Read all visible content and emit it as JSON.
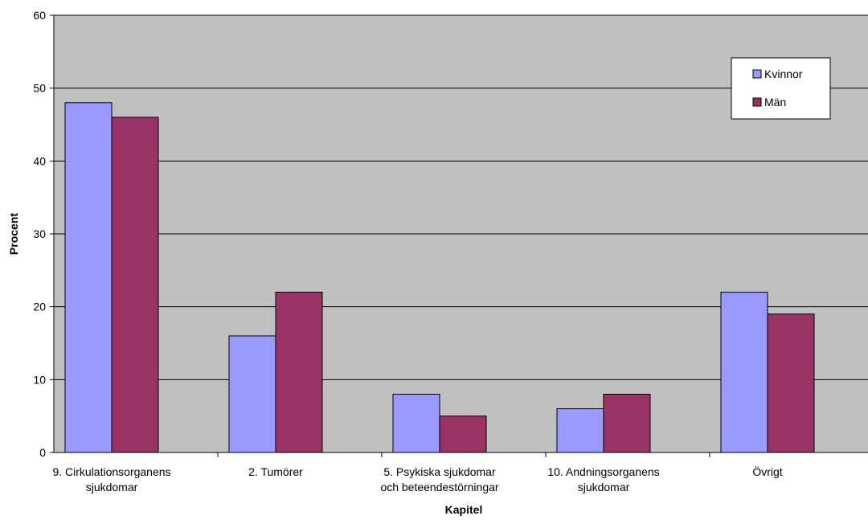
{
  "chart_data": {
    "type": "bar",
    "title": "",
    "xlabel": "Kapitel",
    "ylabel": "Procent",
    "ylim": [
      0,
      60
    ],
    "yticks": [
      0,
      10,
      20,
      30,
      40,
      50,
      60
    ],
    "grid": true,
    "legend_position": "top-right",
    "categories": [
      [
        "9. Cirkulationsorganens",
        "sjukdomar"
      ],
      [
        "2. Tumörer"
      ],
      [
        "5. Psykiska sjukdomar",
        "och beteendestörningar"
      ],
      [
        "10. Andningsorganens",
        "sjukdomar"
      ],
      [
        "Övrigt"
      ]
    ],
    "series": [
      {
        "name": "Kvinnor",
        "color": "#9999ff",
        "values": [
          48,
          16,
          8,
          6,
          22
        ]
      },
      {
        "name": "Män",
        "color": "#993366",
        "values": [
          46,
          22,
          5,
          8,
          19
        ]
      }
    ],
    "plot_background": "#c0c0c0"
  }
}
